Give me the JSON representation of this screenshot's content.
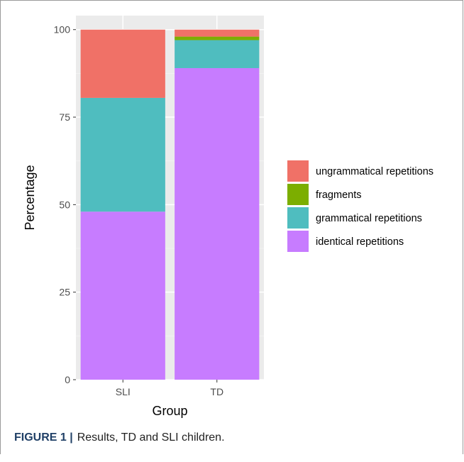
{
  "chart_data": {
    "type": "bar",
    "stacked": true,
    "categories": [
      "SLI",
      "TD"
    ],
    "series": [
      {
        "name": "identical repetitions",
        "color": "#c77cff",
        "values": [
          48,
          89
        ]
      },
      {
        "name": "grammatical repetitions",
        "color": "#4fbdbf",
        "values": [
          32.5,
          8
        ]
      },
      {
        "name": "fragments",
        "color": "#7cae00",
        "values": [
          0,
          1
        ]
      },
      {
        "name": "ungrammatical repetitions",
        "color": "#f07167",
        "values": [
          19.5,
          2
        ]
      }
    ],
    "legend_order": [
      "ungrammatical repetitions",
      "fragments",
      "grammatical repetitions",
      "identical repetitions"
    ],
    "yticks": [
      "0",
      "25",
      "50",
      "75",
      "100"
    ],
    "ylim": [
      0,
      104
    ],
    "xlabel": "Group",
    "ylabel": "Percentage",
    "legend_position": "right",
    "grid": true
  },
  "caption": {
    "label": "FIGURE 1 |",
    "text": "Results, TD and SLI children."
  }
}
